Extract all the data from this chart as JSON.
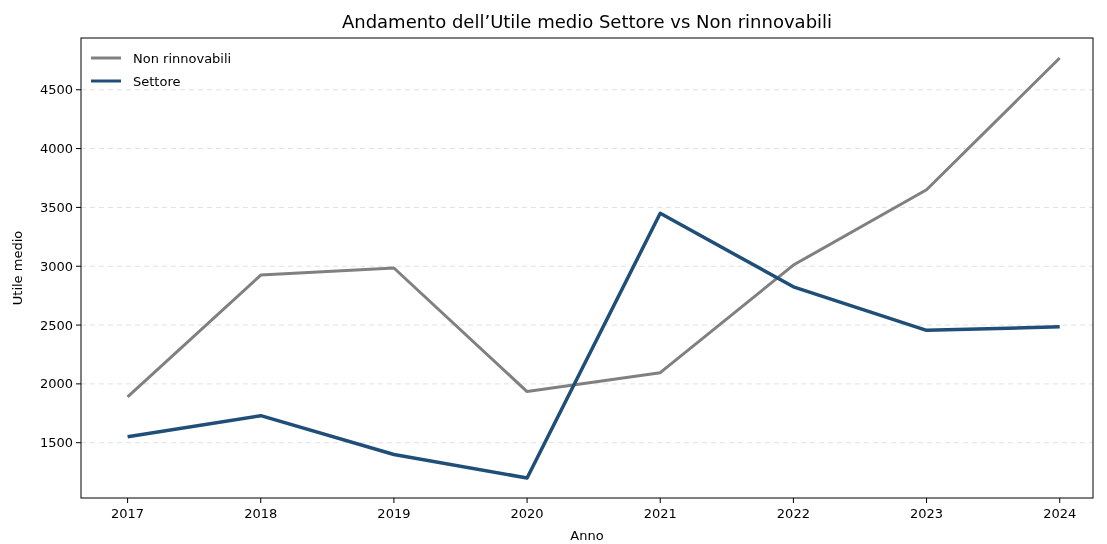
{
  "chart_data": {
    "type": "line",
    "title": "Andamento dell’Utile medio Settore vs Non rinnovabili",
    "xlabel": "Anno",
    "ylabel": "Utile medio",
    "x": [
      2017,
      2018,
      2019,
      2020,
      2021,
      2022,
      2023,
      2024
    ],
    "series": [
      {
        "name": "Non rinnovabili",
        "color": "#808080",
        "values": [
          1890,
          2925,
          2985,
          1935,
          2095,
          3010,
          3650,
          4770
        ]
      },
      {
        "name": "Settore",
        "color": "#1f4e79",
        "values": [
          1550,
          1730,
          1400,
          1200,
          3450,
          2825,
          2455,
          2485
        ]
      }
    ],
    "xlim": [
      2016.65,
      2024.25
    ],
    "xticks": [
      2017,
      2018,
      2019,
      2020,
      2021,
      2022,
      2023,
      2024
    ],
    "ylim": [
      1030,
      4940
    ],
    "yticks": [
      1500,
      2000,
      2500,
      3000,
      3500,
      4000,
      4500
    ],
    "grid": "y",
    "legend": "top left",
    "line_style": "solid",
    "marker": "none"
  }
}
